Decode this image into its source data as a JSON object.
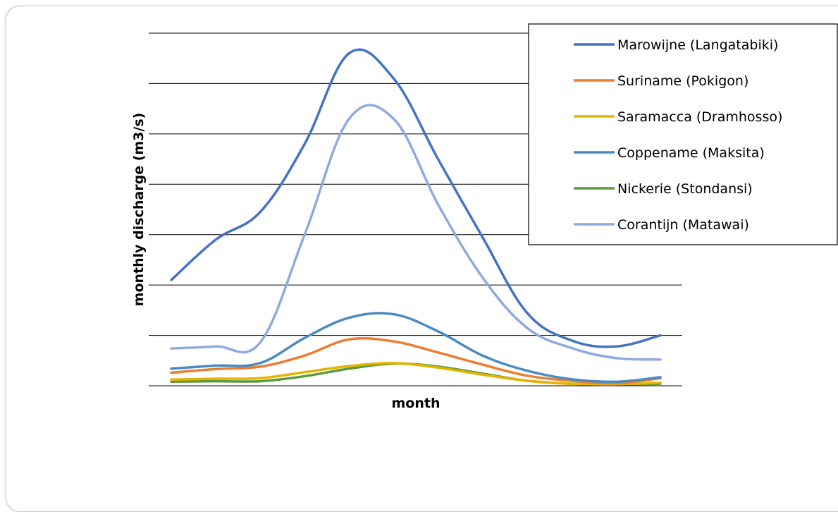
{
  "chart_data": {
    "type": "line",
    "title": "",
    "xlabel": "month",
    "ylabel": "monthly discharge (m3/s)",
    "tick_labels_shown": false,
    "grid": true,
    "gridline_count": 8,
    "legend_position": "top-right",
    "x": [
      1,
      2,
      3,
      4,
      5,
      6,
      7,
      8,
      9,
      10,
      11,
      12
    ],
    "series": [
      {
        "name": "Marowijne (Langatabiki)",
        "color": "#4472C4",
        "values": [
          2.1,
          2.9,
          3.45,
          4.8,
          6.6,
          6.1,
          4.5,
          2.95,
          1.45,
          0.9,
          0.78,
          1.0
        ]
      },
      {
        "name": "Suriname (Pokigon)",
        "color": "#ED7D31",
        "values": [
          0.26,
          0.33,
          0.38,
          0.6,
          0.92,
          0.88,
          0.66,
          0.42,
          0.2,
          0.1,
          0.05,
          0.15
        ]
      },
      {
        "name": "Saramacca (Dramhosso)",
        "color": "#E6B400",
        "values": [
          0.12,
          0.14,
          0.15,
          0.27,
          0.39,
          0.45,
          0.36,
          0.22,
          0.1,
          0.04,
          0.03,
          0.06
        ]
      },
      {
        "name": "Coppename (Maksita)",
        "color": "#4A8BC0",
        "values": [
          0.34,
          0.4,
          0.45,
          0.95,
          1.35,
          1.42,
          1.08,
          0.6,
          0.3,
          0.13,
          0.08,
          0.17
        ]
      },
      {
        "name": "Nickerie (Stondansi)",
        "color": "#5B9A3C",
        "values": [
          0.08,
          0.09,
          0.09,
          0.19,
          0.34,
          0.44,
          0.38,
          0.24,
          0.1,
          0.04,
          0.03,
          0.04
        ]
      },
      {
        "name": "Corantijn (Matawai)",
        "color": "#8FAADC",
        "values": [
          0.74,
          0.78,
          0.86,
          3.0,
          5.3,
          5.3,
          3.6,
          2.15,
          1.15,
          0.75,
          0.55,
          0.52
        ]
      }
    ],
    "ylim": [
      0,
      7
    ]
  }
}
